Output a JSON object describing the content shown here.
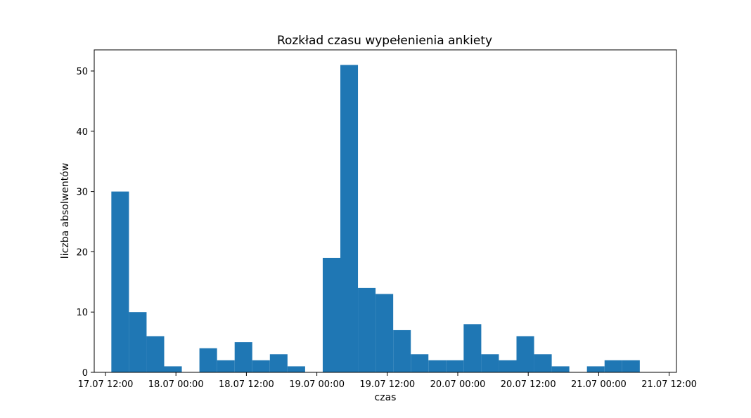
{
  "chart_data": {
    "type": "bar",
    "title": "Rozkład czasu wypełenienia ankiety",
    "xlabel": "czas",
    "ylabel": "liczba absolwentów",
    "x_tick_labels": [
      "17.07 12:00",
      "18.07 00:00",
      "18.07 12:00",
      "19.07 00:00",
      "19.07 12:00",
      "20.07 00:00",
      "20.07 12:00",
      "21.07 00:00",
      "21.07 12:00"
    ],
    "y_tick_labels": [
      "0",
      "10",
      "20",
      "30",
      "40",
      "50"
    ],
    "ylim": [
      0,
      53.5
    ],
    "grid": false,
    "bar_color": "#1f77b4",
    "bins": [
      {
        "start": "2023-07-17T13:00",
        "end": "2023-07-17T16:00",
        "value": 30
      },
      {
        "start": "2023-07-17T16:00",
        "end": "2023-07-17T19:00",
        "value": 10
      },
      {
        "start": "2023-07-17T19:00",
        "end": "2023-07-17T22:00",
        "value": 6
      },
      {
        "start": "2023-07-17T22:00",
        "end": "2023-07-18T01:00",
        "value": 1
      },
      {
        "start": "2023-07-18T01:00",
        "end": "2023-07-18T04:00",
        "value": 0
      },
      {
        "start": "2023-07-18T04:00",
        "end": "2023-07-18T07:00",
        "value": 4
      },
      {
        "start": "2023-07-18T07:00",
        "end": "2023-07-18T10:00",
        "value": 2
      },
      {
        "start": "2023-07-18T10:00",
        "end": "2023-07-18T13:00",
        "value": 5
      },
      {
        "start": "2023-07-18T13:00",
        "end": "2023-07-18T16:00",
        "value": 2
      },
      {
        "start": "2023-07-18T16:00",
        "end": "2023-07-18T19:00",
        "value": 3
      },
      {
        "start": "2023-07-18T19:00",
        "end": "2023-07-18T22:00",
        "value": 1
      },
      {
        "start": "2023-07-18T22:00",
        "end": "2023-07-19T01:00",
        "value": 0
      },
      {
        "start": "2023-07-19T01:00",
        "end": "2023-07-19T04:00",
        "value": 19
      },
      {
        "start": "2023-07-19T04:00",
        "end": "2023-07-19T07:00",
        "value": 51
      },
      {
        "start": "2023-07-19T07:00",
        "end": "2023-07-19T10:00",
        "value": 14
      },
      {
        "start": "2023-07-19T10:00",
        "end": "2023-07-19T13:00",
        "value": 13
      },
      {
        "start": "2023-07-19T13:00",
        "end": "2023-07-19T16:00",
        "value": 7
      },
      {
        "start": "2023-07-19T16:00",
        "end": "2023-07-19T19:00",
        "value": 3
      },
      {
        "start": "2023-07-19T19:00",
        "end": "2023-07-19T22:00",
        "value": 2
      },
      {
        "start": "2023-07-19T22:00",
        "end": "2023-07-20T01:00",
        "value": 2
      },
      {
        "start": "2023-07-20T01:00",
        "end": "2023-07-20T04:00",
        "value": 8
      },
      {
        "start": "2023-07-20T04:00",
        "end": "2023-07-20T07:00",
        "value": 3
      },
      {
        "start": "2023-07-20T07:00",
        "end": "2023-07-20T10:00",
        "value": 2
      },
      {
        "start": "2023-07-20T10:00",
        "end": "2023-07-20T13:00",
        "value": 6
      },
      {
        "start": "2023-07-20T13:00",
        "end": "2023-07-20T16:00",
        "value": 3
      },
      {
        "start": "2023-07-20T16:00",
        "end": "2023-07-20T19:00",
        "value": 1
      },
      {
        "start": "2023-07-20T19:00",
        "end": "2023-07-20T22:00",
        "value": 0
      },
      {
        "start": "2023-07-20T22:00",
        "end": "2023-07-21T01:00",
        "value": 1
      },
      {
        "start": "2023-07-21T01:00",
        "end": "2023-07-21T04:00",
        "value": 2
      },
      {
        "start": "2023-07-21T04:00",
        "end": "2023-07-21T07:00",
        "value": 2
      }
    ]
  }
}
